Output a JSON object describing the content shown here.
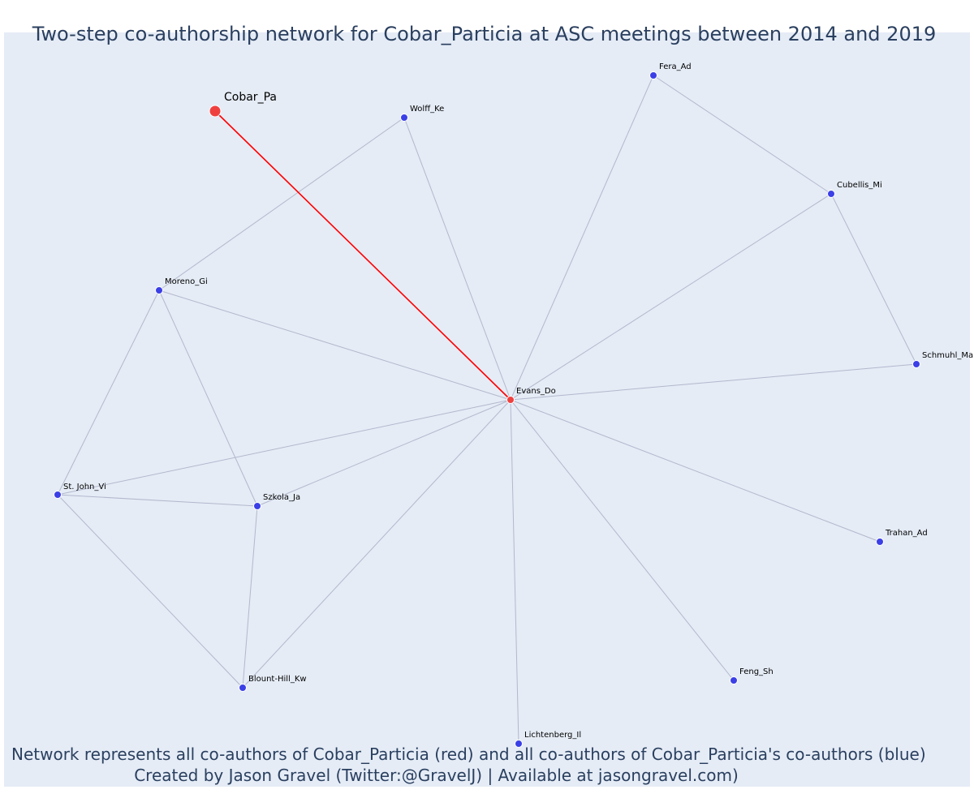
{
  "title": "Two-step co-authorship network for Cobar_Particia at ASC meetings between 2014 and 2019",
  "caption_line1": "Network represents all co-authors of Cobar_Particia (red) and all co-authors of Cobar_Particia's co-authors (blue)",
  "caption_line2": "Created by Jason Gravel (Twitter:@GravelJ) | Available at jasongravel.com)",
  "colors": {
    "plot_background": "#e5ecf6",
    "edge": "#b3b8cc",
    "focal_edge": "#ff0000",
    "red_node": "#ef4040",
    "blue_node": "#3b3fe6",
    "text": "#2a3f5f"
  },
  "network": {
    "nodes": [
      {
        "id": "Cobar_Pa",
        "label": "Cobar_Pa",
        "group": "focal"
      },
      {
        "id": "Evans_Do",
        "label": "Evans_Do",
        "group": "coauthor"
      },
      {
        "id": "Wolff_Ke",
        "label": "Wolff_Ke",
        "group": "second"
      },
      {
        "id": "Fera_Ad",
        "label": "Fera_Ad",
        "group": "second"
      },
      {
        "id": "Cubellis_Mi",
        "label": "Cubellis_Mi",
        "group": "second"
      },
      {
        "id": "Schmuhl_Ma",
        "label": "Schmuhl_Ma",
        "group": "second"
      },
      {
        "id": "Moreno_Gi",
        "label": "Moreno_Gi",
        "group": "second"
      },
      {
        "id": "St. John_Vi",
        "label": "St. John_Vi",
        "group": "second"
      },
      {
        "id": "Szkola_Ja",
        "label": "Szkola_Ja",
        "group": "second"
      },
      {
        "id": "Blount-Hill_Kw",
        "label": "Blount-Hill_Kw",
        "group": "second"
      },
      {
        "id": "Lichtenberg_Il",
        "label": "Lichtenberg_Il",
        "group": "second"
      },
      {
        "id": "Feng_Sh",
        "label": "Feng_Sh",
        "group": "second"
      },
      {
        "id": "Trahan_Ad",
        "label": "Trahan_Ad",
        "group": "second"
      }
    ],
    "edges": [
      {
        "source": "Cobar_Pa",
        "target": "Evans_Do",
        "focal": true
      },
      {
        "source": "Evans_Do",
        "target": "Wolff_Ke"
      },
      {
        "source": "Evans_Do",
        "target": "Fera_Ad"
      },
      {
        "source": "Evans_Do",
        "target": "Cubellis_Mi"
      },
      {
        "source": "Evans_Do",
        "target": "Schmuhl_Ma"
      },
      {
        "source": "Evans_Do",
        "target": "Moreno_Gi"
      },
      {
        "source": "Evans_Do",
        "target": "St. John_Vi"
      },
      {
        "source": "Evans_Do",
        "target": "Szkola_Ja"
      },
      {
        "source": "Evans_Do",
        "target": "Blount-Hill_Kw"
      },
      {
        "source": "Evans_Do",
        "target": "Lichtenberg_Il"
      },
      {
        "source": "Evans_Do",
        "target": "Feng_Sh"
      },
      {
        "source": "Evans_Do",
        "target": "Trahan_Ad"
      },
      {
        "source": "Fera_Ad",
        "target": "Cubellis_Mi"
      },
      {
        "source": "Cubellis_Mi",
        "target": "Schmuhl_Ma"
      },
      {
        "source": "Wolff_Ke",
        "target": "Moreno_Gi"
      },
      {
        "source": "Moreno_Gi",
        "target": "St. John_Vi"
      },
      {
        "source": "Moreno_Gi",
        "target": "Szkola_Ja"
      },
      {
        "source": "St. John_Vi",
        "target": "Szkola_Ja"
      },
      {
        "source": "St. John_Vi",
        "target": "Blount-Hill_Kw"
      },
      {
        "source": "Szkola_Ja",
        "target": "Blount-Hill_Kw"
      }
    ]
  }
}
